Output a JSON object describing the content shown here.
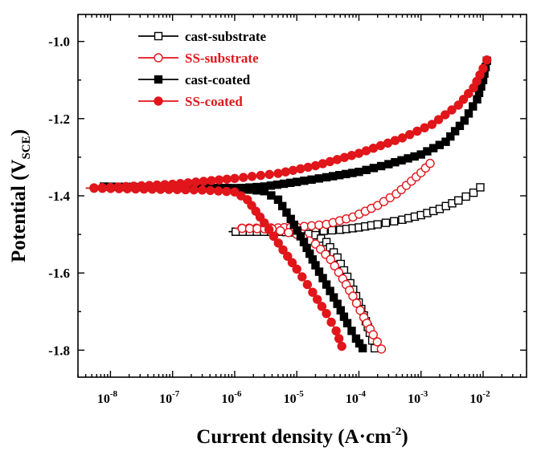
{
  "chart_data": {
    "type": "line",
    "title": "",
    "xlabel_main": "Current density (A·cm",
    "xlabel_sup": "-2",
    "xlabel_tail": ")",
    "ylabel_main": "Potential (V",
    "ylabel_sub": "SCE",
    "ylabel_tail": ")",
    "x_scale": "log",
    "xlim": [
      3e-09,
      0.05
    ],
    "ylim": [
      -1.87,
      -0.93
    ],
    "x_ticks": [
      {
        "value": 1e-08,
        "base": "10",
        "exp": "-8"
      },
      {
        "value": 1e-07,
        "base": "10",
        "exp": "-7"
      },
      {
        "value": 1e-06,
        "base": "10",
        "exp": "-6"
      },
      {
        "value": 1e-05,
        "base": "10",
        "exp": "-5"
      },
      {
        "value": 0.0001,
        "base": "10",
        "exp": "-4"
      },
      {
        "value": 0.001,
        "base": "10",
        "exp": "-3"
      },
      {
        "value": 0.01,
        "base": "10",
        "exp": "-2"
      }
    ],
    "y_ticks": [
      {
        "value": -1.0,
        "label": "-1.0"
      },
      {
        "value": -1.2,
        "label": "-1.2"
      },
      {
        "value": -1.4,
        "label": "-1.4"
      },
      {
        "value": -1.6,
        "label": "-1.6"
      },
      {
        "value": -1.8,
        "label": "-1.8"
      }
    ],
    "legend_position": "top-left",
    "series": [
      {
        "name": "cast-substrate",
        "color": "#000000",
        "marker": "square-open",
        "anodic": [
          [
            8e-07,
            -1.493
          ],
          [
            3e-06,
            -1.493
          ],
          [
            1e-05,
            -1.493
          ],
          [
            2e-05,
            -1.492
          ],
          [
            5e-05,
            -1.488
          ],
          [
            0.0001,
            -1.482
          ],
          [
            0.0002,
            -1.474
          ],
          [
            0.0005,
            -1.462
          ],
          [
            0.001,
            -1.45
          ],
          [
            0.002,
            -1.434
          ],
          [
            0.004,
            -1.412
          ],
          [
            0.007,
            -1.392
          ],
          [
            0.009,
            -1.378
          ]
        ],
        "cathodic": [
          [
            8e-07,
            -1.493
          ],
          [
            5e-06,
            -1.493
          ],
          [
            1.2e-05,
            -1.496
          ],
          [
            2e-05,
            -1.502
          ],
          [
            3e-05,
            -1.52
          ],
          [
            4.5e-05,
            -1.56
          ],
          [
            6.5e-05,
            -1.61
          ],
          [
            9e-05,
            -1.66
          ],
          [
            0.00012,
            -1.71
          ],
          [
            0.00015,
            -1.755
          ],
          [
            0.00018,
            -1.795
          ]
        ]
      },
      {
        "name": "SS-substrate",
        "color": "#e0161b",
        "marker": "circle-open",
        "anodic": [
          [
            1e-06,
            -1.484
          ],
          [
            5e-06,
            -1.483
          ],
          [
            1e-05,
            -1.481
          ],
          [
            3e-05,
            -1.474
          ],
          [
            8e-05,
            -1.455
          ],
          [
            0.0002,
            -1.425
          ],
          [
            0.0004,
            -1.395
          ],
          [
            0.0007,
            -1.362
          ],
          [
            0.001,
            -1.34
          ],
          [
            0.0014,
            -1.316
          ]
        ],
        "cathodic": [
          [
            1e-06,
            -1.484
          ],
          [
            4e-06,
            -1.486
          ],
          [
            1e-05,
            -1.5
          ],
          [
            2e-05,
            -1.525
          ],
          [
            3.5e-05,
            -1.565
          ],
          [
            5.5e-05,
            -1.615
          ],
          [
            8e-05,
            -1.66
          ],
          [
            0.00012,
            -1.715
          ],
          [
            0.00017,
            -1.76
          ],
          [
            0.00023,
            -1.797
          ]
        ]
      },
      {
        "name": "cast-coated",
        "color": "#000000",
        "marker": "square-filled",
        "anodic": [
          [
            6e-09,
            -1.376
          ],
          [
            1e-07,
            -1.379
          ],
          [
            1e-06,
            -1.381
          ],
          [
            3e-06,
            -1.376
          ],
          [
            1e-05,
            -1.364
          ],
          [
            3e-05,
            -1.352
          ],
          [
            0.0001,
            -1.338
          ],
          [
            0.0003,
            -1.318
          ],
          [
            0.001,
            -1.293
          ],
          [
            0.0025,
            -1.26
          ],
          [
            0.005,
            -1.205
          ],
          [
            0.008,
            -1.15
          ],
          [
            0.01,
            -1.1
          ],
          [
            0.0115,
            -1.05
          ]
        ],
        "cathodic": [
          [
            6e-09,
            -1.376
          ],
          [
            1e-06,
            -1.38
          ],
          [
            3e-06,
            -1.388
          ],
          [
            5e-06,
            -1.41
          ],
          [
            8e-06,
            -1.46
          ],
          [
            1.3e-05,
            -1.52
          ],
          [
            2e-05,
            -1.58
          ],
          [
            3e-05,
            -1.63
          ],
          [
            4.5e-05,
            -1.68
          ],
          [
            6.5e-05,
            -1.73
          ],
          [
            9e-05,
            -1.77
          ],
          [
            0.000115,
            -1.795
          ]
        ]
      },
      {
        "name": "SS-coated",
        "color": "#e0161b",
        "marker": "circle-filled",
        "anodic": [
          [
            4e-09,
            -1.38
          ],
          [
            1e-08,
            -1.378
          ],
          [
            1e-07,
            -1.37
          ],
          [
            1e-06,
            -1.355
          ],
          [
            5e-06,
            -1.342
          ],
          [
            2e-05,
            -1.322
          ],
          [
            0.0001,
            -1.29
          ],
          [
            0.0005,
            -1.25
          ],
          [
            0.0015,
            -1.215
          ],
          [
            0.004,
            -1.165
          ],
          [
            0.007,
            -1.12
          ],
          [
            0.01,
            -1.07
          ],
          [
            0.0115,
            -1.048
          ]
        ],
        "cathodic": [
          [
            4e-09,
            -1.38
          ],
          [
            3e-07,
            -1.385
          ],
          [
            1e-06,
            -1.39
          ],
          [
            1.6e-06,
            -1.41
          ],
          [
            3e-06,
            -1.47
          ],
          [
            6e-06,
            -1.54
          ],
          [
            1e-05,
            -1.59
          ],
          [
            1.8e-05,
            -1.65
          ],
          [
            3e-05,
            -1.705
          ],
          [
            4.3e-05,
            -1.75
          ],
          [
            5.3e-05,
            -1.79
          ]
        ]
      }
    ]
  }
}
